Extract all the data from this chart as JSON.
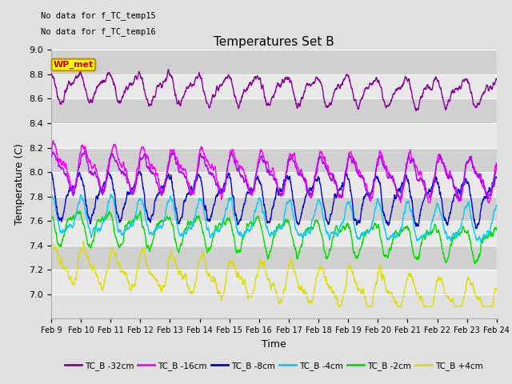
{
  "title": "Temperatures Set B",
  "ylabel": "Temperature (C)",
  "xlabel": "Time",
  "note_line1": "No data for f_TC_temp15",
  "note_line2": "No data for f_TC_temp16",
  "wp_met_label": "WP_met",
  "wp_met_color": "#cc0000",
  "wp_met_bg": "#ffff00",
  "wp_met_border": "#cc8800",
  "ylim": [
    6.8,
    9.0
  ],
  "yticks": [
    7.0,
    7.2,
    7.4,
    7.6,
    7.8,
    8.0,
    8.2,
    8.4,
    8.6,
    8.8,
    9.0
  ],
  "xtick_labels": [
    "Feb 9",
    "Feb 10",
    "Feb 11",
    "Feb 12",
    "Feb 13",
    "Feb 14",
    "Feb 15",
    "Feb 16",
    "Feb 17",
    "Feb 18",
    "Feb 19",
    "Feb 20",
    "Feb 21",
    "Feb 22",
    "Feb 23",
    "Feb 24"
  ],
  "series": [
    {
      "name": "TC_B -32cm",
      "color": "#aa00ff",
      "lw": 1.0
    },
    {
      "name": "TC_B -16cm",
      "color": "#ff00ff",
      "lw": 1.0
    },
    {
      "name": "TC_B -8cm",
      "color": "#0000dd",
      "lw": 1.0
    },
    {
      "name": "TC_B -4cm",
      "color": "#00ccff",
      "lw": 1.0
    },
    {
      "name": "TC_B -2cm",
      "color": "#00dd00",
      "lw": 1.0
    },
    {
      "name": "TC_B +4cm",
      "color": "#dddd00",
      "lw": 1.0
    }
  ],
  "wp_met_series_color": "#880099",
  "bg_color": "#e0e0e0",
  "band_colors": [
    "#e8e8e8",
    "#d0d0d0"
  ],
  "n_days": 15,
  "seed": 42
}
